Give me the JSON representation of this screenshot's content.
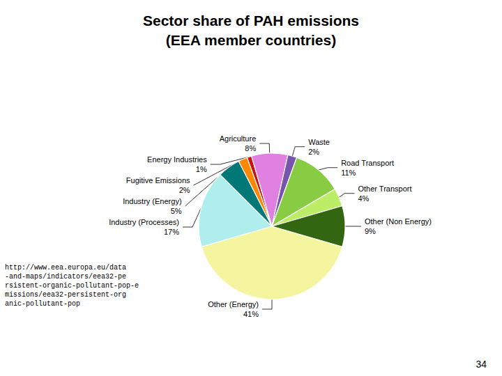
{
  "chart_data": {
    "type": "pie",
    "title": "Sector share of PAH emissions\n(EEA member countries)",
    "categories": [
      "Other (Energy)",
      "Industry (Processes)",
      "Industry (Energy)",
      "Fugitive Emissions",
      "Energy Industries",
      "Agriculture",
      "Waste",
      "Road Transport",
      "Other Transport",
      "Other (Non Energy)"
    ],
    "values": [
      41,
      17,
      5,
      2,
      1,
      8,
      2,
      11,
      4,
      9
    ],
    "value_labels": [
      "41%",
      "17%",
      "5%",
      "2%",
      "1%",
      "8%",
      "2%",
      "11%",
      "4%",
      "9%"
    ],
    "colors": [
      "#f5f5a0",
      "#b0eded",
      "#007878",
      "#ff8800",
      "#cc1111",
      "#e080e0",
      "#7755aa",
      "#88cc44",
      "#bbee66",
      "#336611"
    ],
    "data_labels": true,
    "annotations": [
      "http://www.eea.europa.eu/data\n-and-maps/indicators/eea32-pe\nrsistent-organic-pollutant-pop-e\nmissions/eea32-persistent-org\nanic-pollutant-pop",
      "34"
    ]
  }
}
